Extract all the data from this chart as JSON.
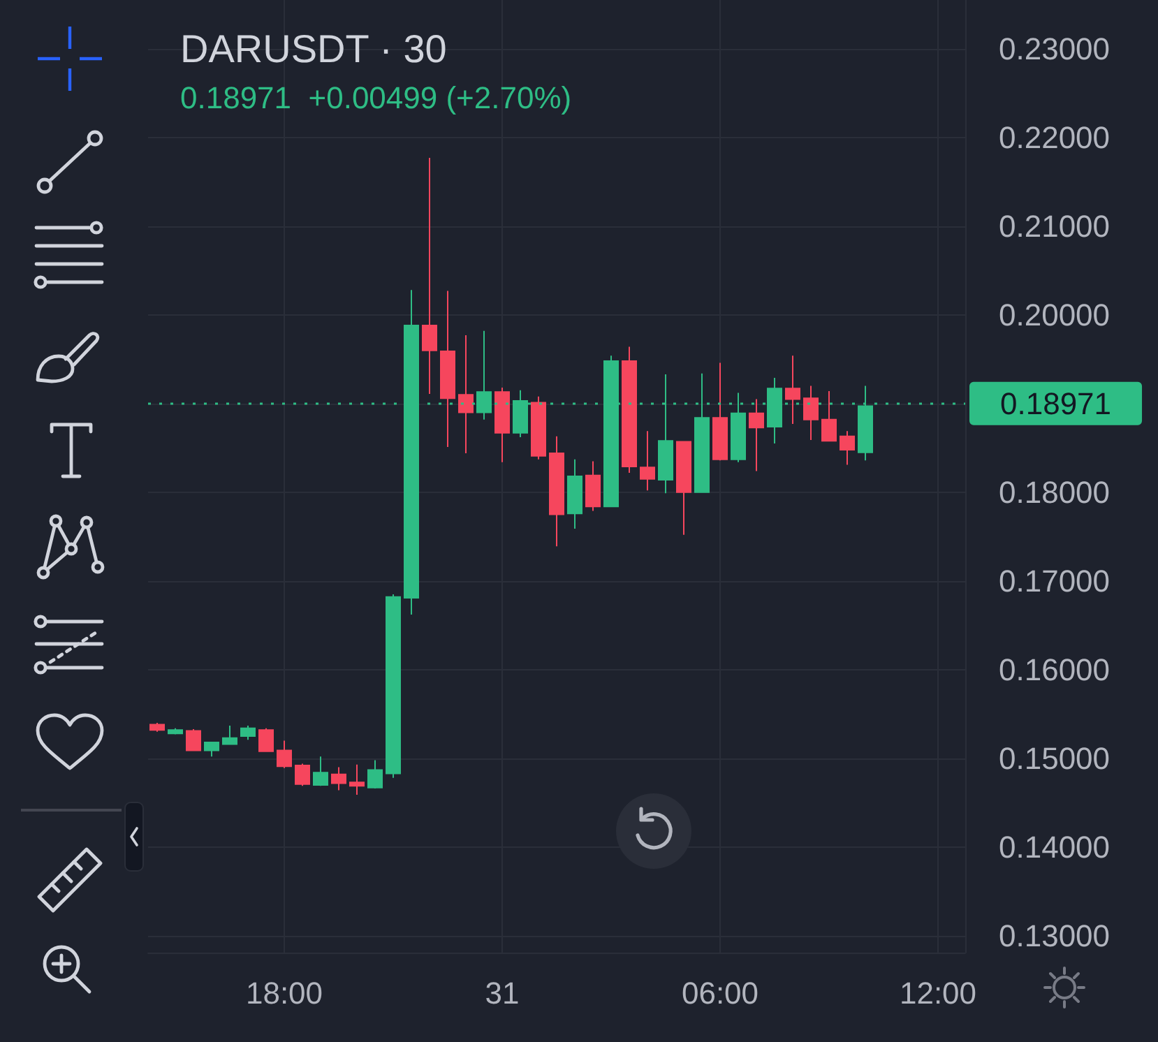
{
  "chart_data": {
    "type": "candlestick",
    "title": "DARUSDT · 30",
    "subtitle": "0.18971  +0.00499 (+2.70%)",
    "categories": [
      null,
      null,
      null,
      null,
      null,
      null,
      null,
      "18:00",
      null,
      null,
      null,
      null,
      null,
      null,
      null,
      null,
      null,
      null,
      null,
      "31",
      null,
      null,
      null,
      null,
      null,
      null,
      null,
      null,
      null,
      null,
      null,
      "06:00",
      null,
      null,
      null,
      null,
      null,
      null,
      null,
      null,
      null,
      null,
      null,
      "12:00",
      null
    ],
    "ohlc": [
      [
        0.1538,
        0.154,
        0.153,
        0.1532
      ],
      [
        0.1528,
        0.1534,
        0.1527,
        0.1532
      ],
      [
        0.1531,
        0.1533,
        0.1509,
        0.1509
      ],
      [
        0.1509,
        0.1518,
        0.1502,
        0.1518
      ],
      [
        0.1516,
        0.1537,
        0.1516,
        0.1523
      ],
      [
        0.1525,
        0.1537,
        0.1521,
        0.1534
      ],
      [
        0.1532,
        0.1534,
        0.1508,
        0.1508
      ],
      [
        0.1509,
        0.152,
        0.1489,
        0.1491
      ],
      [
        0.1492,
        0.1494,
        0.1469,
        0.1471
      ],
      [
        0.147,
        0.1502,
        0.1469,
        0.1484
      ],
      [
        0.1482,
        0.149,
        0.1464,
        0.1472
      ],
      [
        0.1473,
        0.1493,
        0.1459,
        0.1469
      ],
      [
        0.1467,
        0.1498,
        0.1466,
        0.1487
      ],
      [
        0.1483,
        0.1685,
        0.1478,
        0.1682
      ],
      [
        0.1681,
        0.2028,
        0.1662,
        0.1988
      ],
      [
        0.1988,
        0.2177,
        0.1911,
        0.196
      ],
      [
        0.1959,
        0.2027,
        0.1851,
        0.1906
      ],
      [
        0.191,
        0.1977,
        0.1844,
        0.189
      ],
      [
        0.189,
        0.1982,
        0.1882,
        0.1913
      ],
      [
        0.1913,
        0.1918,
        0.1834,
        0.1867
      ],
      [
        0.1867,
        0.1915,
        0.1862,
        0.1903
      ],
      [
        0.1901,
        0.1908,
        0.1837,
        0.1841
      ],
      [
        0.1844,
        0.1863,
        0.1739,
        0.1775
      ],
      [
        0.1776,
        0.1837,
        0.1759,
        0.1818
      ],
      [
        0.1819,
        0.1835,
        0.1779,
        0.1784
      ],
      [
        0.1784,
        0.1954,
        0.1784,
        0.1948
      ],
      [
        0.1948,
        0.1964,
        0.1822,
        0.1829
      ],
      [
        0.1828,
        0.1869,
        0.1802,
        0.1815
      ],
      [
        0.1814,
        0.1933,
        0.1799,
        0.1858
      ],
      [
        0.1857,
        0.1857,
        0.1752,
        0.18
      ],
      [
        0.18,
        0.1934,
        0.18,
        0.1884
      ],
      [
        0.1884,
        0.1946,
        0.1836,
        0.1837
      ],
      [
        0.1837,
        0.1912,
        0.1834,
        0.1889
      ],
      [
        0.1889,
        0.1905,
        0.1824,
        0.1873
      ],
      [
        0.1874,
        0.1929,
        0.1855,
        0.1917
      ],
      [
        0.1917,
        0.1954,
        0.1877,
        0.1905
      ],
      [
        0.1906,
        0.192,
        0.1859,
        0.1882
      ],
      [
        0.1882,
        0.1914,
        0.1858,
        0.1858
      ],
      [
        0.1863,
        0.1869,
        0.1831,
        0.1848
      ],
      [
        0.1845,
        0.192,
        0.1836,
        0.18971
      ],
      null,
      null,
      null,
      null,
      null
    ],
    "colors": [
      "#f6465d",
      "#2ebd85",
      "#f6465d",
      "#2ebd85",
      "#2ebd85",
      "#2ebd85",
      "#f6465d",
      "#f6465d",
      "#f6465d",
      "#2ebd85",
      "#f6465d",
      "#f6465d",
      "#2ebd85",
      "#2ebd85",
      "#2ebd85",
      "#f6465d",
      "#f6465d",
      "#f6465d",
      "#2ebd85",
      "#f6465d",
      "#2ebd85",
      "#f6465d",
      "#f6465d",
      "#2ebd85",
      "#f6465d",
      "#2ebd85",
      "#f6465d",
      "#f6465d",
      "#2ebd85",
      "#f6465d",
      "#2ebd85",
      "#f6465d",
      "#2ebd85",
      "#f6465d",
      "#2ebd85",
      "#f6465d",
      "#f6465d",
      "#f6465d",
      "#f6465d",
      "#2ebd85",
      null,
      null,
      null,
      null,
      null
    ],
    "ylim": [
      0.1281,
      0.2355
    ],
    "yticks": [
      {
        "value": 0.13,
        "label": "0.13000"
      },
      {
        "value": 0.14,
        "label": "0.14000"
      },
      {
        "value": 0.15,
        "label": "0.15000"
      },
      {
        "value": 0.16,
        "label": "0.16000"
      },
      {
        "value": 0.17,
        "label": "0.17000"
      },
      {
        "value": 0.18,
        "label": "0.18000"
      },
      {
        "value": 0.19,
        "label": null
      },
      {
        "value": 0.2,
        "label": "0.20000"
      },
      {
        "value": 0.21,
        "label": "0.21000"
      },
      {
        "value": 0.22,
        "label": "0.22000"
      },
      {
        "value": 0.23,
        "label": "0.23000"
      }
    ],
    "ref_lines": [
      {
        "axis": "y",
        "value": 0.18971,
        "label": "0.18971",
        "color": "#2ebd85",
        "line_style": "dotted"
      }
    ],
    "grid": true
  }
}
